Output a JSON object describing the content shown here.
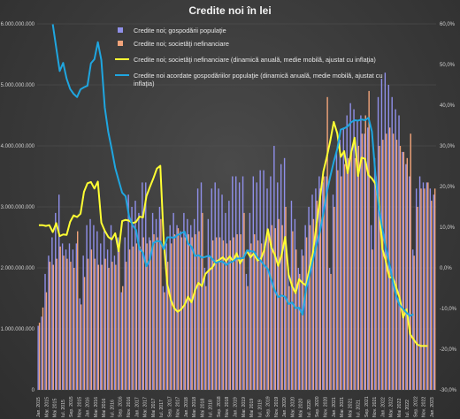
{
  "chart_data": {
    "type": "bar+line",
    "title": "Credite  noi  în lei",
    "colors": {
      "gospodarii": "#8f8fe8",
      "nefinanciare": "#f2a47a",
      "line_nefinanciare": "#ffff33",
      "line_gospodarii": "#1fa6e0",
      "grid": "#555555",
      "background": "#3c3c3c"
    },
    "y_left": {
      "range": [
        0,
        6000000000
      ],
      "ticks": [
        0,
        1000000000,
        2000000000,
        3000000000,
        4000000000,
        5000000000,
        6000000000
      ],
      "tick_labels": [
        "0",
        "1.000.000.000",
        "2.000.000.000",
        "3.000.000.000",
        "4.000.000.000",
        "5.000.000.000",
        "6.000.000.000"
      ]
    },
    "y_right": {
      "range": [
        -30,
        60
      ],
      "ticks": [
        -30,
        -20,
        -10,
        0,
        10,
        20,
        30,
        40,
        50,
        60
      ],
      "tick_labels": [
        "-30,0%",
        "-20,0%",
        "-10,0%",
        "0,0%",
        "10,0%",
        "20,0%",
        "30,0%",
        "40,0%",
        "50,0%",
        "60,0%"
      ]
    },
    "x_tick_labels": [
      "Jan. 2015",
      "Mar. 2015",
      "Mai 2015",
      "Iul. 2015",
      "Sep. 2015",
      "Nov. 2015",
      "Jan. 2016",
      "Mar. 2016",
      "Mai 2016",
      "Iul. 2016",
      "Sep. 2016",
      "Nov. 2016",
      "Jan. 2017",
      "Mar. 2017",
      "Mai 2017",
      "Iul. 2017",
      "Sep. 2017",
      "Nov. 2017",
      "Jan. 2018",
      "Mar. 2018",
      "Mai 2018",
      "Iul. 2018",
      "Sep. 2018",
      "Nov. 2018",
      "Jan. 2019",
      "Mar. 2019",
      "Mai 2019",
      "Iul. 2019",
      "Sep. 2019",
      "Nov. 2019",
      "Jan. 2020",
      "Mar. 2020",
      "Mai 2020",
      "Iul. 2020",
      "Sep. 2020",
      "Nov. 2020",
      "Jan. 2021",
      "Mar. 2021",
      "Mai 2021",
      "Iul. 2021",
      "Sep. 2021",
      "Nov. 2021",
      "Jan. 2022",
      "Mar. 2022",
      "Mai 2022",
      "Iul. 2022",
      "Sep. 2022",
      "Nov. 2022",
      "Jan. 2023"
    ],
    "legend": [
      {
        "label": "Credite noi; gospodării populaţie",
        "kind": "bar",
        "color": "#8f8fe8"
      },
      {
        "label": "Credite noi; societăţi nefinanciare",
        "kind": "bar",
        "color": "#f2a47a"
      },
      {
        "label": "Credite noi; societăţi nefinanciare (dinamică anuală, medie mobilă, ajustat cu inflaţia)",
        "kind": "line",
        "color": "#ffff33"
      },
      {
        "label": "Credite noi acordate gospodăriilor populaţie (dinamică anuală, medie mobilă, ajustat cu",
        "label_line2": "inflaţia)",
        "kind": "line",
        "color": "#1fa6e0"
      }
    ],
    "series": [
      {
        "name": "Credite noi; gospodării populaţie",
        "kind": "bar",
        "axis": "left",
        "values": [
          1050000000,
          1200000000,
          1900000000,
          2200000000,
          2500000000,
          2900000000,
          3200000000,
          2400000000,
          2300000000,
          2400000000,
          2300000000,
          2400000000,
          1500000000,
          2200000000,
          2700000000,
          2800000000,
          2700000000,
          2600000000,
          2400000000,
          2600000000,
          2300000000,
          2700000000,
          2200000000,
          2500000000,
          1600000000,
          2500000000,
          3200000000,
          3000000000,
          3100000000,
          2900000000,
          3400000000,
          3400000000,
          2500000000,
          2900000000,
          2800000000,
          3000000000,
          1700000000,
          2400000000,
          2700000000,
          2900000000,
          2700000000,
          2600000000,
          2900000000,
          2800000000,
          2700000000,
          2800000000,
          3300000000,
          3400000000,
          2000000000,
          2800000000,
          3300000000,
          3400000000,
          3300000000,
          3200000000,
          2900000000,
          3100000000,
          3500000000,
          3500000000,
          3400000000,
          3500000000,
          1900000000,
          2900000000,
          3500000000,
          3400000000,
          3600000000,
          3600000000,
          3300000000,
          3500000000,
          4000000000,
          3400000000,
          3700000000,
          3800000000,
          2000000000,
          3100000000,
          2800000000,
          2000000000,
          2300000000,
          2700000000,
          3000000000,
          3200000000,
          3300000000,
          3500000000,
          3400000000,
          3500000000,
          2000000000,
          3200000000,
          3900000000,
          4100000000,
          4300000000,
          4500000000,
          4700000000,
          4600000000,
          4400000000,
          4500000000,
          4200000000,
          4300000000,
          2700000000,
          3800000000,
          4800000000,
          5100000000,
          5200000000,
          5000000000,
          4800000000,
          4600000000,
          4500000000,
          3900000000,
          3700000000,
          3500000000,
          2300000000,
          3300000000,
          3500000000,
          3400000000,
          3400000000,
          3300000000,
          3200000000
        ]
      },
      {
        "name": "Credite noi; societăţi nefinanciare",
        "kind": "bar",
        "axis": "left",
        "values": [
          1100000000,
          1350000000,
          1600000000,
          2100000000,
          2050000000,
          2150000000,
          2350000000,
          2200000000,
          2150000000,
          2100000000,
          2000000000,
          2600000000,
          1400000000,
          1850000000,
          2150000000,
          2300000000,
          2150000000,
          2050000000,
          2050000000,
          2150000000,
          2000000000,
          2100000000,
          2050000000,
          2300000000,
          1700000000,
          2100000000,
          2300000000,
          2350000000,
          2400000000,
          2350000000,
          2500000000,
          2400000000,
          2450000000,
          2550000000,
          2500000000,
          2800000000,
          1600000000,
          2100000000,
          2400000000,
          2550000000,
          2650000000,
          2500000000,
          2500000000,
          2550000000,
          2500000000,
          2550000000,
          2600000000,
          2900000000,
          1700000000,
          2200000000,
          2450000000,
          2500000000,
          2500000000,
          2450000000,
          2400000000,
          2450000000,
          2500000000,
          2550000000,
          2550000000,
          2900000000,
          1700000000,
          2400000000,
          2550000000,
          2450000000,
          2400000000,
          2400000000,
          2550000000,
          2700000000,
          2650000000,
          2800000000,
          2700000000,
          3000000000,
          1700000000,
          2600000000,
          2300000000,
          1900000000,
          2200000000,
          2500000000,
          2700000000,
          2800000000,
          3100000000,
          3300000000,
          3500000000,
          4800000000,
          1900000000,
          3000000000,
          3600000000,
          3500000000,
          3700000000,
          3800000000,
          3900000000,
          3800000000,
          4000000000,
          4200000000,
          4500000000,
          4900000000,
          2300000000,
          3500000000,
          4000000000,
          4100000000,
          4200000000,
          4300000000,
          4200000000,
          4100000000,
          4000000000,
          3900000000,
          3800000000,
          4200000000,
          2200000000,
          3000000000,
          3300000000,
          3300000000,
          3400000000,
          3100000000,
          3300000000
        ]
      },
      {
        "name": "Credite noi; societăţi nefinanciare (dinamică anuală, medie mobilă, ajustat cu inflaţia)",
        "kind": "line",
        "axis": "right",
        "values": [
          10.5,
          10.5,
          10.3,
          10.5,
          8.8,
          11,
          7.8,
          8.2,
          8.1,
          11.3,
          12.9,
          12.5,
          13.3,
          18.7,
          20.8,
          21.1,
          19.5,
          21.2,
          11.1,
          9.1,
          7.6,
          7,
          8.5,
          4.1,
          11.5,
          11.8,
          11.6,
          11,
          11.3,
          12.6,
          12.4,
          17.6,
          19.9,
          22,
          24.4,
          25.1,
          6.5,
          -3.9,
          -7.8,
          -9.9,
          -10.8,
          -10.2,
          -9.1,
          -7.1,
          -8.5,
          -5.6,
          -3.7,
          -4.5,
          -1.5,
          -0.6,
          0.1,
          1.5,
          2,
          2.6,
          1.7,
          2.8,
          1.6,
          3.6,
          1.1,
          2.6,
          4.1,
          2.6,
          3.6,
          1.8,
          2.2,
          4.5,
          9.5,
          5.1,
          3.2,
          0.5,
          3.3,
          7.6,
          -1.7,
          -4.5,
          -6.2,
          -2.8,
          -3.7,
          -4.3,
          -0.2,
          3.8,
          10.4,
          16.8,
          23.7,
          27.3,
          31.3,
          35.9,
          33.1,
          27.3,
          28.7,
          23.3,
          28.2,
          32,
          22.6,
          27.1,
          26.8,
          22.8,
          22,
          20.7,
          16.3,
          4.7,
          1.7,
          -2.3,
          -2.4,
          -4.8,
          -7.4,
          -12.2,
          -10.2,
          -16.3,
          -17.6,
          -18.8,
          -19.2,
          -19.2,
          -19.2
        ]
      },
      {
        "name": "Credite noi acordate gospodăriilor populaţie (dinamică anuală, medie mobilă, ajustat cu inflaţia)",
        "kind": "line",
        "axis": "right",
        "values": [
          null,
          null,
          null,
          null,
          59.9,
          54.1,
          48.4,
          50.4,
          46.5,
          44,
          42.8,
          42,
          43.9,
          44.4,
          44.8,
          50.3,
          51.3,
          55.5,
          51.1,
          39.4,
          33.4,
          29.2,
          24.6,
          21.5,
          18.5,
          17.6,
          12.6,
          10.5,
          9.3,
          4.6,
          3.7,
          0.4,
          2.1,
          6.1,
          6.6,
          6.5,
          4.6,
          7.5,
          7.5,
          7.4,
          8.1,
          8.5,
          8.9,
          6,
          5.2,
          2.9,
          3.1,
          2.5,
          2.7,
          3,
          2.2,
          1.2,
          1.6,
          1.5,
          0.7,
          1.3,
          1.6,
          2.3,
          2.3,
          2.4,
          4.3,
          4.1,
          4,
          2.6,
          1.7,
          0.6,
          -0.3,
          -3,
          -5.6,
          -7.2,
          -6.8,
          -7.1,
          -8.9,
          -8.5,
          -9.9,
          -9.8,
          -11.5,
          -5.3,
          -1.9,
          1.9,
          5.5,
          8.9,
          13.4,
          18.6,
          22.5,
          26.1,
          29.2,
          34,
          34.3,
          34.8,
          35.8,
          36.3,
          36.2,
          36.5,
          36.3,
          36.9,
          33.5,
          23.1,
          14.4,
          9.7,
          4.9,
          1.2,
          -3.3,
          -6.9,
          -9.2,
          -10.1,
          -11.1,
          -11.8,
          -11.4,
          null,
          null,
          null
        ]
      }
    ]
  }
}
